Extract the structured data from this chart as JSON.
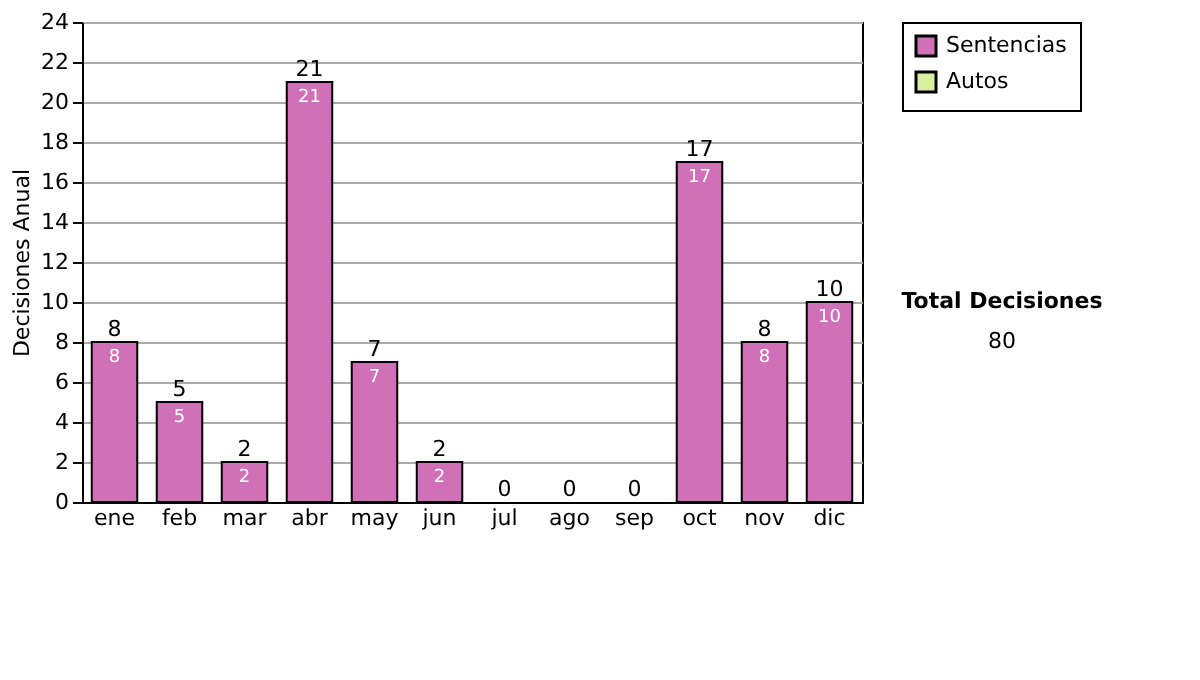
{
  "chart_data": {
    "type": "bar",
    "stacked": true,
    "ylabel": "Decisiones Anual",
    "categories": [
      "ene",
      "feb",
      "mar",
      "abr",
      "may",
      "jun",
      "jul",
      "ago",
      "sep",
      "oct",
      "nov",
      "dic"
    ],
    "series": [
      {
        "name": "Sentencias",
        "color": "#d070b8",
        "values": [
          8,
          5,
          2,
          21,
          7,
          2,
          0,
          0,
          0,
          17,
          8,
          10
        ],
        "value_labels": [
          "8",
          "5",
          "2",
          "21",
          "7",
          "2",
          null,
          null,
          null,
          "17",
          "8",
          "10"
        ]
      },
      {
        "name": "Autos",
        "color": "#d8f0a0",
        "values": [
          0,
          0,
          0,
          0,
          0,
          0,
          0,
          0,
          0,
          0,
          0,
          0
        ]
      }
    ],
    "totals": [
      "8",
      "5",
      "2",
      "21",
      "7",
      "2",
      "0",
      "0",
      "0",
      "17",
      "8",
      "10"
    ],
    "ylim": [
      0,
      24
    ],
    "yticks": [
      0,
      2,
      4,
      6,
      8,
      10,
      12,
      14,
      16,
      18,
      20,
      22,
      24
    ],
    "grid": "y",
    "legend": "right",
    "annotations": [
      "Total Decisiones",
      "80"
    ]
  }
}
